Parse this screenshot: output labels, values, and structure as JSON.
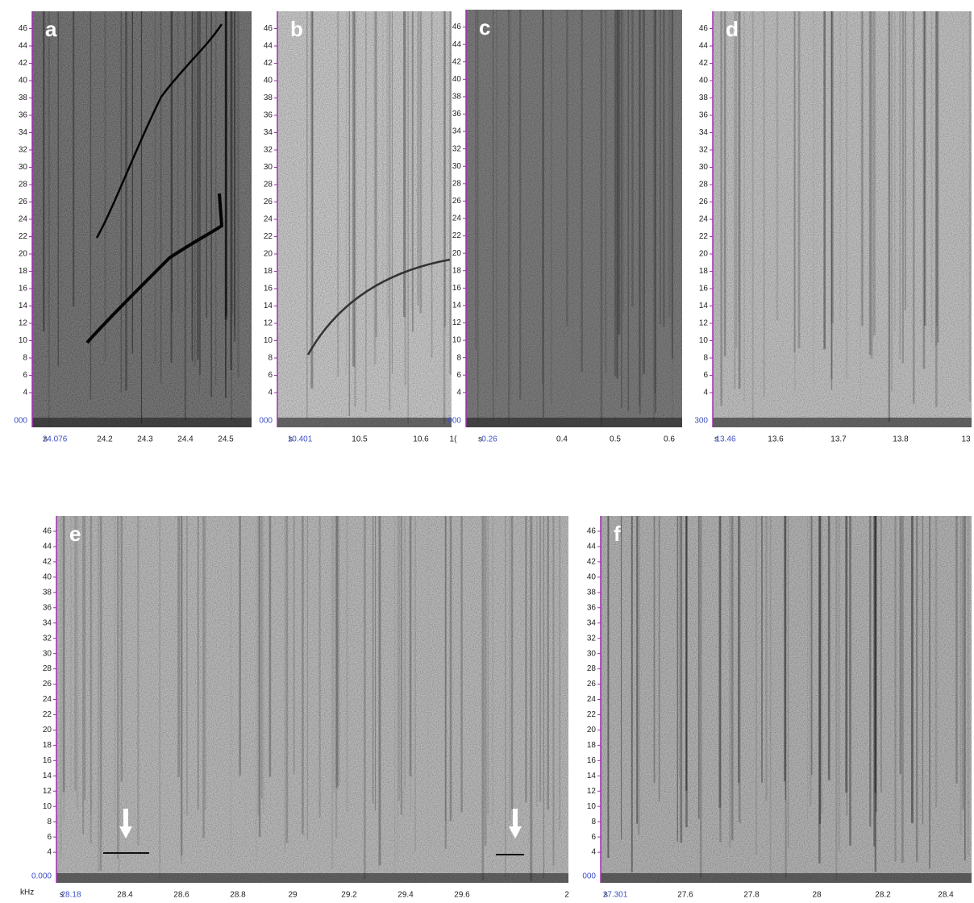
{
  "panels": [
    {
      "label": "a",
      "y_ticks": [
        46,
        44,
        42,
        40,
        38,
        36,
        34,
        32,
        30,
        28,
        26,
        24,
        22,
        20,
        18,
        16,
        14,
        12,
        10,
        8,
        6,
        4
      ],
      "y_origin": "000",
      "x_unit": "s",
      "x_ticks": [
        "24.076",
        "24.2",
        "24.3",
        "24.4",
        "24.5"
      ]
    },
    {
      "label": "b",
      "y_ticks": [
        46,
        44,
        42,
        40,
        38,
        36,
        34,
        32,
        30,
        28,
        26,
        24,
        22,
        20,
        18,
        16,
        14,
        12,
        10,
        8,
        6,
        4
      ],
      "y_origin": "000",
      "x_unit": "s",
      "x_ticks": [
        "10.401",
        "10.5",
        "10.6",
        "1("
      ]
    },
    {
      "label": "c",
      "y_ticks": [
        46,
        44,
        42,
        40,
        38,
        36,
        34,
        32,
        30,
        28,
        26,
        24,
        22,
        20,
        18,
        16,
        14,
        12,
        10,
        8,
        6,
        4
      ],
      "y_origin": "000",
      "x_unit": "s",
      "x_ticks": [
        "0.26",
        "0.4",
        "0.5",
        "0.6"
      ]
    },
    {
      "label": "d",
      "y_ticks": [
        46,
        44,
        42,
        40,
        38,
        36,
        34,
        32,
        30,
        28,
        26,
        24,
        22,
        20,
        18,
        16,
        14,
        12,
        10,
        8,
        6,
        4
      ],
      "y_origin": "300",
      "x_unit": "s",
      "x_ticks": [
        "13.46",
        "13.6",
        "13.7",
        "13.8",
        "13"
      ]
    },
    {
      "label": "e",
      "y_ticks": [
        46,
        44,
        42,
        40,
        38,
        36,
        34,
        32,
        30,
        28,
        26,
        24,
        22,
        20,
        18,
        16,
        14,
        12,
        10,
        8,
        6,
        4
      ],
      "y_origin": "0.000",
      "y_unit": "kHz",
      "x_unit": "s",
      "x_ticks": [
        "28.18",
        "28.4",
        "28.6",
        "28.8",
        "29",
        "29.2",
        "29.4",
        "29.6",
        "2"
      ]
    },
    {
      "label": "f",
      "y_ticks": [
        46,
        44,
        42,
        40,
        38,
        36,
        34,
        32,
        30,
        28,
        26,
        24,
        22,
        20,
        18,
        16,
        14,
        12,
        10,
        8,
        6,
        4
      ],
      "y_origin": "000",
      "x_unit": "s",
      "x_ticks": [
        "27.301",
        "27.6",
        "27.8",
        "28",
        "28.2",
        "28.4"
      ]
    }
  ]
}
